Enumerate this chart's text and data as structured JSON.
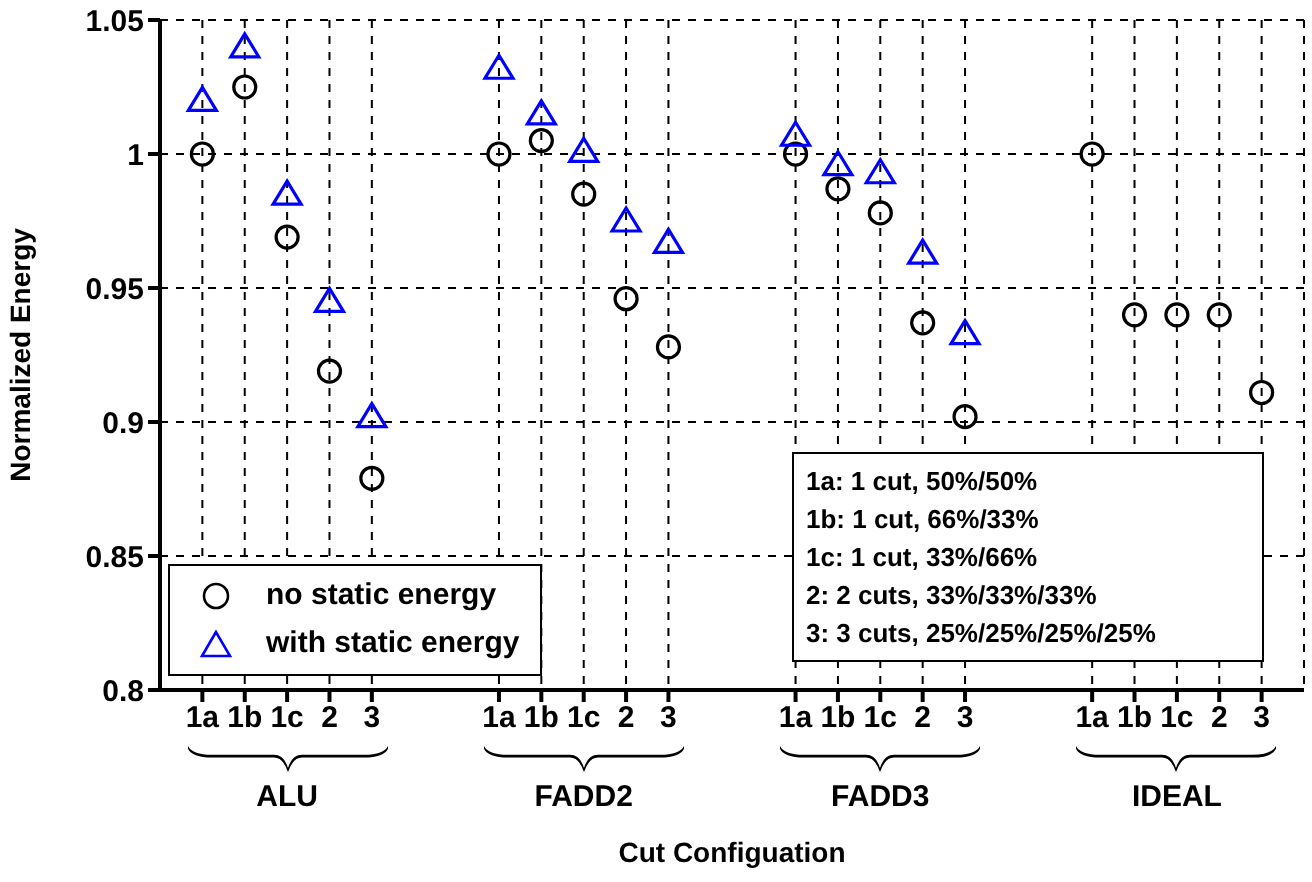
{
  "chart_data": {
    "type": "scatter",
    "xlabel": "Cut Configuation",
    "ylabel": "Normalized Energy",
    "categories": [
      "1a",
      "1b",
      "1c",
      "2",
      "3",
      null,
      null,
      "1a",
      "1b",
      "1c",
      "2",
      "3",
      null,
      null,
      "1a",
      "1b",
      "1c",
      "2",
      "3",
      null,
      null,
      "1a",
      "1b",
      "1c",
      "2",
      "3"
    ],
    "series": [
      {
        "name": "no static energy",
        "color": "#000000",
        "marker": "circle",
        "values": [
          1.0,
          1.025,
          0.969,
          0.919,
          0.879,
          null,
          null,
          1.0,
          1.005,
          0.985,
          0.946,
          0.928,
          null,
          null,
          1.0,
          0.987,
          0.978,
          0.937,
          0.902,
          null,
          null,
          1.0,
          0.94,
          0.94,
          0.94,
          0.911
        ]
      },
      {
        "name": "with static energy",
        "color": "#0000ff",
        "marker": "triangle",
        "values": [
          1.02,
          1.04,
          0.985,
          0.945,
          0.902,
          null,
          null,
          1.032,
          1.015,
          1.001,
          0.975,
          0.967,
          null,
          null,
          1.007,
          0.996,
          0.993,
          0.963,
          0.933,
          null,
          null,
          null,
          null,
          null,
          null,
          null
        ]
      }
    ],
    "ylim": [
      0.8,
      1.05
    ],
    "yticks": [
      0.8,
      0.85,
      0.9,
      0.95,
      {
        "value": 1,
        "label": "1"
      },
      1.05
    ],
    "grid": true,
    "line_style": "dashed",
    "legend": "bottom left",
    "annotations": [
      "ALU",
      "FADD2",
      "FADD3",
      "IDEAL",
      "1a: 1 cut, 50%/50%",
      "1b: 1 cut, 66%/33%",
      "1c: 1 cut, 33%/66%",
      "2: 2 cuts, 33%/33%/33%",
      "3: 3 cuts, 25%/25%/25%/25%"
    ]
  }
}
